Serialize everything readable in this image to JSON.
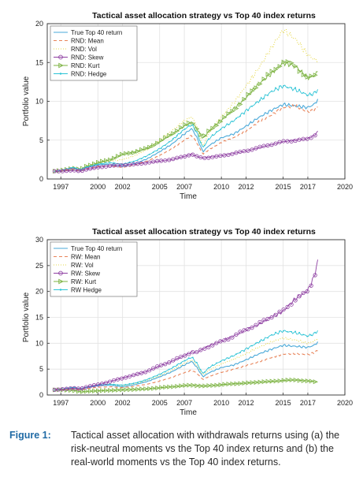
{
  "chart_data": [
    {
      "id": "a",
      "type": "line",
      "title": "Tactical asset allocation strategy vs Top 40 index returns",
      "xlabel": "Time",
      "ylabel": "Portfolio value",
      "xlim": [
        1995.9,
        2020
      ],
      "ylim": [
        0,
        20
      ],
      "xticks": [
        1997,
        2000,
        2002,
        2005,
        2007,
        2010,
        2012,
        2015,
        2017,
        2020
      ],
      "yticks": [
        0,
        5,
        10,
        15,
        20
      ],
      "legend_position": "top-left",
      "grid": true,
      "series": [
        {
          "name": "True Top 40 return",
          "color": "#4aa9d9",
          "dash": "",
          "marker": "none",
          "x": [
            1996.5,
            1997,
            1998,
            1998.6,
            1999,
            2000,
            2001,
            2002,
            2003,
            2004,
            2005,
            2006,
            2007,
            2007.6,
            2008,
            2008.5,
            2009,
            2010,
            2011,
            2012,
            2013,
            2014,
            2015,
            2016,
            2017,
            2017.5,
            2017.8
          ],
          "values": [
            1.0,
            1.1,
            1.4,
            1.1,
            1.4,
            1.8,
            1.9,
            1.6,
            2.0,
            2.6,
            3.5,
            4.5,
            5.8,
            6.5,
            5.4,
            3.5,
            4.3,
            5.3,
            5.8,
            6.8,
            7.9,
            8.8,
            9.6,
            9.4,
            9.2,
            9.6,
            10.2
          ]
        },
        {
          "name": "RND: Mean",
          "color": "#e8845a",
          "dash": "4,3",
          "marker": "none",
          "x": [
            1996.5,
            1997,
            1998,
            1998.6,
            1999,
            2000,
            2001,
            2002,
            2003,
            2004,
            2005,
            2006,
            2007,
            2007.6,
            2008,
            2008.5,
            2009,
            2010,
            2011,
            2012,
            2013,
            2014,
            2015,
            2016,
            2017,
            2017.5,
            2017.8
          ],
          "values": [
            1.0,
            1.05,
            1.3,
            1.0,
            1.3,
            1.6,
            1.7,
            1.5,
            1.8,
            2.3,
            3.0,
            3.9,
            5.0,
            5.6,
            4.7,
            3.2,
            3.8,
            4.7,
            5.3,
            6.2,
            7.3,
            8.2,
            9.2,
            9.4,
            8.6,
            8.9,
            9.3
          ]
        },
        {
          "name": "RND: Vol",
          "color": "#e6d84a",
          "dash": "1,2",
          "marker": "none",
          "x": [
            1996.5,
            1997,
            1998,
            1998.6,
            1999,
            2000,
            2001,
            2002,
            2003,
            2004,
            2005,
            2006,
            2007,
            2007.6,
            2008,
            2008.5,
            2009,
            2010,
            2011,
            2012,
            2013,
            2014,
            2015,
            2016,
            2017,
            2017.5,
            2017.8
          ],
          "values": [
            1.0,
            1.1,
            1.5,
            1.2,
            1.6,
            2.1,
            2.3,
            2.5,
            3.0,
            3.8,
            5.0,
            6.2,
            7.5,
            8.0,
            6.9,
            4.2,
            6.0,
            8.0,
            9.8,
            12.0,
            14.2,
            16.8,
            19.2,
            18.0,
            16.0,
            15.4,
            15.2
          ]
        },
        {
          "name": "RND: Skew",
          "color": "#8e3fa2",
          "dash": "",
          "marker": "circle",
          "x": [
            1996.5,
            1997,
            1998,
            1998.6,
            1999,
            2000,
            2001,
            2002,
            2003,
            2004,
            2005,
            2006,
            2007,
            2007.6,
            2008,
            2008.5,
            2009,
            2010,
            2011,
            2012,
            2013,
            2014,
            2015,
            2016,
            2017,
            2017.5,
            2017.8
          ],
          "values": [
            1.0,
            1.0,
            1.1,
            1.0,
            1.2,
            1.5,
            1.7,
            1.8,
            1.9,
            2.1,
            2.3,
            2.5,
            2.9,
            3.2,
            2.9,
            2.7,
            2.8,
            3.0,
            3.3,
            3.6,
            4.0,
            4.4,
            4.8,
            5.0,
            5.2,
            5.6,
            6.1
          ]
        },
        {
          "name": "RND: Kurt",
          "color": "#7cb342",
          "dash": "",
          "marker": "triangle",
          "x": [
            1996.5,
            1997,
            1998,
            1998.6,
            1999,
            2000,
            2001,
            2002,
            2003,
            2004,
            2005,
            2006,
            2007,
            2007.6,
            2008,
            2008.5,
            2009,
            2010,
            2011,
            2012,
            2013,
            2014,
            2015,
            2016,
            2017,
            2017.5,
            2017.8
          ],
          "values": [
            1.0,
            1.1,
            1.4,
            1.2,
            1.6,
            2.1,
            2.5,
            3.2,
            3.5,
            4.0,
            4.8,
            5.8,
            6.8,
            7.3,
            6.5,
            5.2,
            6.2,
            7.6,
            9.0,
            10.5,
            12.2,
            13.5,
            15.0,
            14.5,
            13.0,
            13.3,
            13.8
          ]
        },
        {
          "name": "RND: Hedge",
          "color": "#2ec4d6",
          "dash": "",
          "marker": "dot",
          "x": [
            1996.5,
            1997,
            1998,
            1998.6,
            1999,
            2000,
            2001,
            2002,
            2003,
            2004,
            2005,
            2006,
            2007,
            2007.6,
            2008,
            2008.5,
            2009,
            2010,
            2011,
            2012,
            2013,
            2014,
            2015,
            2016,
            2017,
            2017.5,
            2017.8
          ],
          "values": [
            1.0,
            1.1,
            1.5,
            1.2,
            1.5,
            1.9,
            2.1,
            1.9,
            2.3,
            3.0,
            3.9,
            5.0,
            6.4,
            7.0,
            6.0,
            4.0,
            5.2,
            6.5,
            7.5,
            8.8,
            10.0,
            11.2,
            12.0,
            11.5,
            10.8,
            11.0,
            11.5
          ]
        }
      ]
    },
    {
      "id": "b",
      "type": "line",
      "title": "Tactical asset allocation strategy vs Top 40 index returns",
      "xlabel": "Time",
      "ylabel": "Portfolio value",
      "xlim": [
        1995.9,
        2020
      ],
      "ylim": [
        0,
        30
      ],
      "xticks": [
        1997,
        2000,
        2002,
        2005,
        2007,
        2010,
        2012,
        2015,
        2017,
        2020
      ],
      "yticks": [
        0,
        5,
        10,
        15,
        20,
        25,
        30
      ],
      "legend_position": "top-left",
      "grid": true,
      "series": [
        {
          "name": "True Top 40 return",
          "color": "#4aa9d9",
          "dash": "",
          "marker": "none",
          "x": [
            1996.5,
            1997,
            1998,
            1998.6,
            1999,
            2000,
            2001,
            2002,
            2003,
            2004,
            2005,
            2006,
            2007,
            2007.6,
            2008,
            2008.5,
            2009,
            2010,
            2011,
            2012,
            2013,
            2014,
            2015,
            2016,
            2017,
            2017.5,
            2017.8
          ],
          "values": [
            1.0,
            1.1,
            1.4,
            1.1,
            1.4,
            1.8,
            1.9,
            1.6,
            2.0,
            2.6,
            3.5,
            4.5,
            5.8,
            6.5,
            5.4,
            3.5,
            4.3,
            5.3,
            5.8,
            6.8,
            7.9,
            8.8,
            9.6,
            9.4,
            9.2,
            9.6,
            10.2
          ]
        },
        {
          "name": "RW: Mean",
          "color": "#e8845a",
          "dash": "4,3",
          "marker": "none",
          "x": [
            1996.5,
            1997,
            1998,
            1998.6,
            1999,
            2000,
            2001,
            2002,
            2003,
            2004,
            2005,
            2006,
            2007,
            2007.6,
            2008,
            2008.5,
            2009,
            2010,
            2011,
            2012,
            2013,
            2014,
            2015,
            2016,
            2017,
            2017.5,
            2017.8
          ],
          "values": [
            1.0,
            1.05,
            1.2,
            1.0,
            1.2,
            1.5,
            1.6,
            1.4,
            1.7,
            2.1,
            2.7,
            3.4,
            4.3,
            4.8,
            4.2,
            3.0,
            3.6,
            4.4,
            5.0,
            5.7,
            6.4,
            7.2,
            7.9,
            8.0,
            7.8,
            8.2,
            8.6
          ]
        },
        {
          "name": "RW: Vol",
          "color": "#e6d84a",
          "dash": "1,2",
          "marker": "none",
          "x": [
            1996.5,
            1997,
            1998,
            1998.6,
            1999,
            2000,
            2001,
            2002,
            2003,
            2004,
            2005,
            2006,
            2007,
            2007.6,
            2008,
            2008.5,
            2009,
            2010,
            2011,
            2012,
            2013,
            2014,
            2015,
            2016,
            2017,
            2017.5,
            2017.8
          ],
          "values": [
            1.0,
            1.1,
            1.4,
            1.1,
            1.4,
            1.8,
            2.0,
            1.8,
            2.2,
            2.8,
            3.7,
            4.8,
            6.1,
            6.8,
            5.8,
            3.8,
            4.8,
            6.0,
            6.9,
            8.0,
            9.2,
            10.2,
            11.0,
            10.6,
            10.0,
            10.4,
            10.9
          ]
        },
        {
          "name": "RW: Skew",
          "color": "#8e3fa2",
          "dash": "",
          "marker": "circle",
          "x": [
            1996.5,
            1997,
            1998,
            1998.6,
            1999,
            2000,
            2001,
            2002,
            2003,
            2004,
            2005,
            2006,
            2007,
            2007.6,
            2008,
            2008.5,
            2009,
            2010,
            2011,
            2012,
            2013,
            2014,
            2015,
            2016,
            2017,
            2017.5,
            2017.8
          ],
          "values": [
            1.0,
            1.1,
            1.3,
            1.2,
            1.5,
            2.0,
            2.6,
            3.3,
            3.9,
            4.6,
            5.6,
            6.5,
            7.6,
            8.3,
            8.2,
            8.9,
            9.5,
            10.4,
            11.4,
            12.6,
            13.6,
            15.0,
            16.2,
            18.6,
            20.2,
            22.8,
            25.8
          ]
        },
        {
          "name": "RW: Kurt",
          "color": "#7cb342",
          "dash": "",
          "marker": "triangle",
          "x": [
            1996.5,
            1997,
            1998,
            1998.6,
            1999,
            2000,
            2001,
            2002,
            2003,
            2004,
            2005,
            2006,
            2007,
            2007.6,
            2008,
            2008.5,
            2009,
            2010,
            2011,
            2012,
            2013,
            2014,
            2015,
            2016,
            2017,
            2017.5,
            2017.8
          ],
          "values": [
            1.0,
            1.0,
            0.9,
            0.6,
            0.7,
            0.8,
            0.9,
            1.0,
            1.1,
            1.2,
            1.4,
            1.6,
            1.8,
            1.9,
            1.8,
            1.7,
            1.8,
            2.0,
            2.2,
            2.3,
            2.5,
            2.6,
            2.8,
            2.9,
            2.7,
            2.6,
            2.5
          ]
        },
        {
          "name": "RW Hedge",
          "color": "#2ec4d6",
          "dash": "",
          "marker": "dot",
          "x": [
            1996.5,
            1997,
            1998,
            1998.6,
            1999,
            2000,
            2001,
            2002,
            2003,
            2004,
            2005,
            2006,
            2007,
            2007.6,
            2008,
            2008.5,
            2009,
            2010,
            2011,
            2012,
            2013,
            2014,
            2015,
            2016,
            2017,
            2017.5,
            2017.8
          ],
          "values": [
            1.0,
            1.1,
            1.5,
            1.2,
            1.5,
            1.9,
            2.1,
            1.9,
            2.3,
            3.0,
            4.0,
            5.2,
            6.6,
            7.3,
            6.2,
            4.1,
            5.3,
            6.6,
            7.6,
            8.9,
            10.2,
            11.5,
            12.4,
            12.0,
            11.4,
            11.8,
            12.4
          ]
        }
      ]
    }
  ],
  "caption": {
    "label": "Figure 1:",
    "text": "Tactical asset allocation with withdrawals returns using (a) the risk-neutral moments vs the Top 40 index returns and (b) the real-world moments vs the Top 40 index returns."
  }
}
